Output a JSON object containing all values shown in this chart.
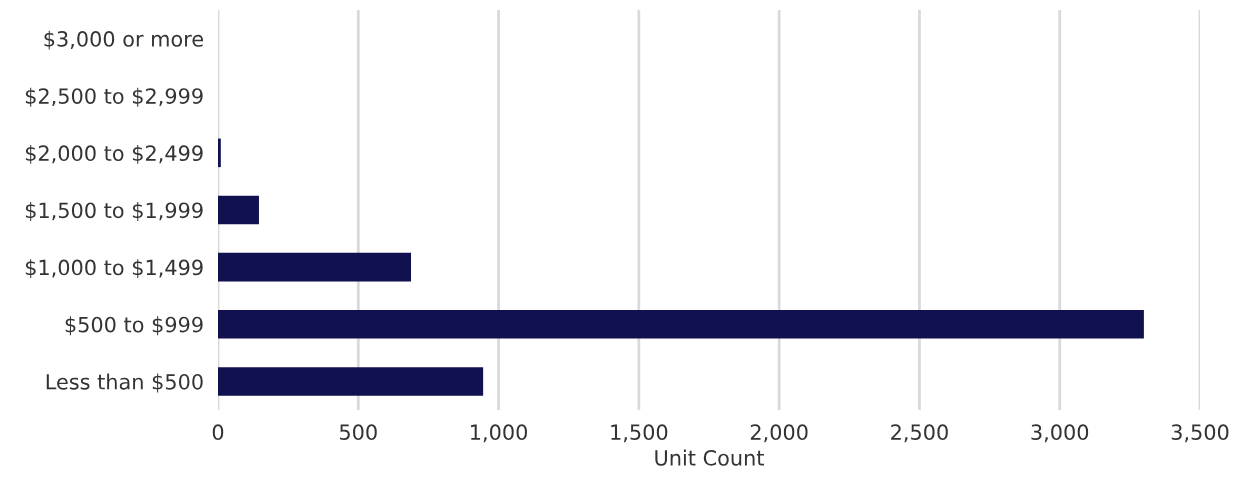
{
  "chart_data": {
    "type": "bar",
    "orientation": "horizontal",
    "categories": [
      "$3,000 or more",
      "$2,500 to $2,999",
      "$2,000 to $2,499",
      "$1,500 to $1,999",
      "$1,000 to $1,499",
      "$500 to $999",
      "Less than $500"
    ],
    "values": [
      0,
      0,
      10,
      146,
      688,
      3300,
      945
    ],
    "color": "#12114f",
    "xlabel": "Unit Count",
    "xlim": [
      0,
      3500
    ],
    "xticks": [
      0,
      {
        "value": 500,
        "label": "500"
      },
      {
        "value": 1000,
        "label": "1,000"
      },
      {
        "value": 1500,
        "label": "1,500"
      },
      {
        "value": 2000,
        "label": "2,000"
      },
      {
        "value": 2500,
        "label": "2,500"
      },
      {
        "value": 3000,
        "label": "3,000"
      },
      {
        "value": 3500,
        "label": "3,500"
      }
    ],
    "grid": "x"
  }
}
